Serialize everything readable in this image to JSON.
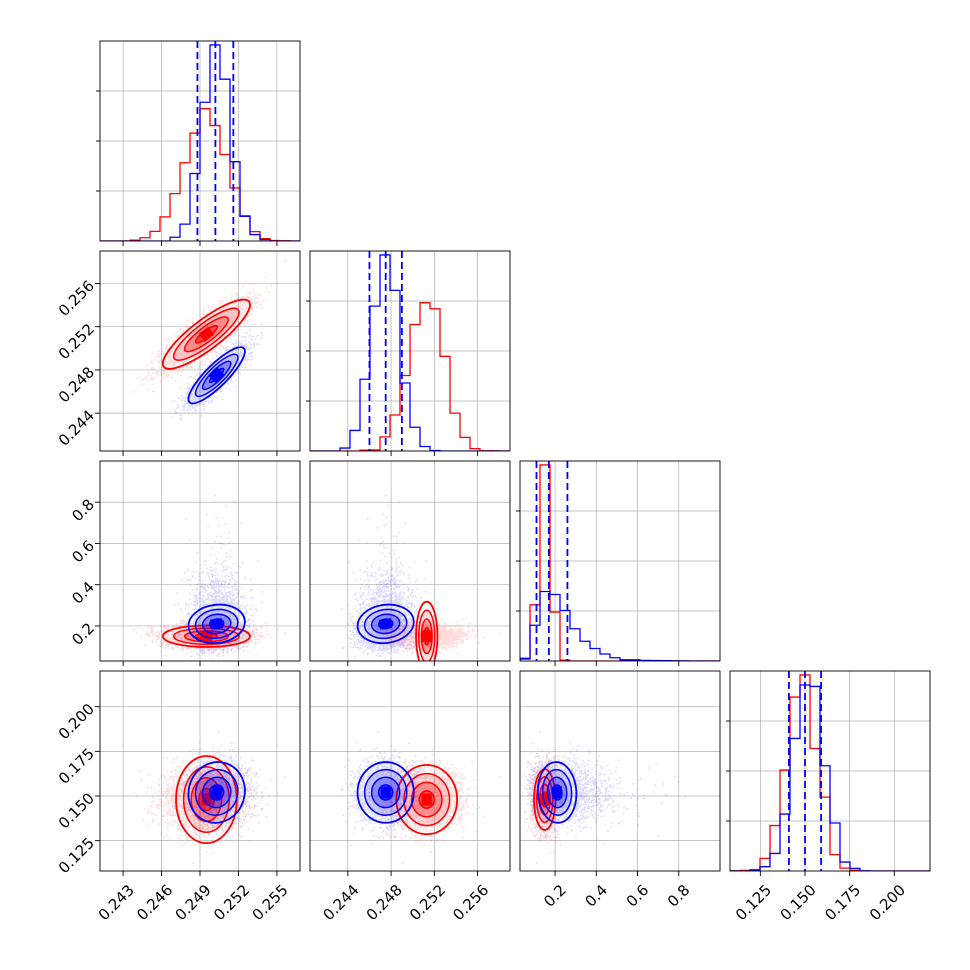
{
  "colors": {
    "red": "#ff0000",
    "blue": "#0000ff",
    "grid": "#b0b0b0",
    "axis": "#000000"
  },
  "chart_data": {
    "type": "corner",
    "grid": true,
    "series": [
      {
        "name": "",
        "color": "#ff0000",
        "means": [
          0.2495,
          0.2513,
          0.15,
          0.148
        ],
        "sigmas": [
          0.0017,
          0.0016,
          0.026,
          0.0085
        ],
        "correlations": {
          "0-1": 0.85,
          "0-2": 0.0,
          "0-3": 0.0,
          "1-2": 0.0,
          "1-3": 0.0,
          "2-3": 0.0
        }
      },
      {
        "name": "",
        "color": "#0000ff",
        "means": [
          0.2503,
          0.2475,
          0.21,
          0.152
        ],
        "sigmas": [
          0.0011,
          0.0013,
          0.085,
          0.0085
        ],
        "correlations": {
          "0-1": 0.85,
          "0-2": 0.1,
          "0-3": 0.05,
          "1-2": 0.1,
          "1-3": 0.0,
          "2-3": -0.05
        }
      }
    ],
    "quantile_lines": [
      {
        "param": 0,
        "values": [
          0.2488,
          0.2502,
          0.2516
        ]
      },
      {
        "param": 1,
        "values": [
          0.246,
          0.2475,
          0.249
        ]
      },
      {
        "param": 2,
        "values": [
          0.11,
          0.17,
          0.26
        ]
      },
      {
        "param": 3,
        "values": [
          0.141,
          0.15,
          0.159
        ]
      }
    ],
    "axes": [
      {
        "param": 0,
        "range": [
          0.2412,
          0.2568
        ],
        "ticks": [
          0.243,
          0.246,
          0.249,
          0.252,
          0.255
        ],
        "tick_labels": [
          "0.243",
          "0.246",
          "0.249",
          "0.252",
          "0.255"
        ]
      },
      {
        "param": 1,
        "range": [
          0.2405,
          0.259
        ],
        "ticks": [
          0.244,
          0.248,
          0.252,
          0.256
        ],
        "tick_labels": [
          "0.244",
          "0.248",
          "0.252",
          "0.256"
        ]
      },
      {
        "param": 2,
        "range": [
          0.03,
          1.0
        ],
        "ticks": [
          0.2,
          0.4,
          0.6,
          0.8
        ],
        "tick_labels": [
          "0.2",
          "0.4",
          "0.6",
          "0.8"
        ]
      },
      {
        "param": 3,
        "range": [
          0.108,
          0.22
        ],
        "ticks": [
          0.125,
          0.15,
          0.175,
          0.2
        ],
        "tick_labels": [
          "0.125",
          "0.150",
          "0.175",
          "0.200"
        ]
      }
    ]
  }
}
